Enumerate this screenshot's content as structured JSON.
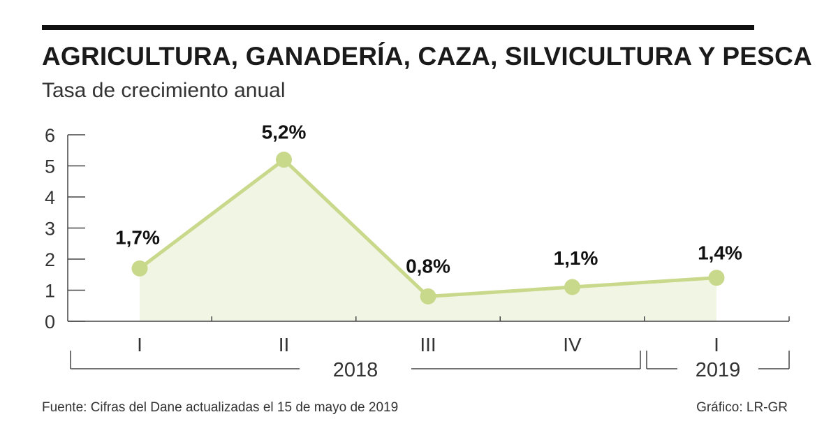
{
  "header": {
    "title": "AGRICULTURA, GANADERÍA, CAZA, SILVICULTURA Y PESCA",
    "subtitle": "Tasa de crecimiento anual"
  },
  "footer": {
    "source": "Fuente: Cifras del Dane actualizadas el 15 de mayo de 2019",
    "credit": "Gráfico: LR-GR"
  },
  "colors": {
    "line": "#c9d98c",
    "fill": "#f1f5e3",
    "axis": "#444444"
  },
  "chart_data": {
    "type": "line",
    "title": "AGRICULTURA, GANADERÍA, CAZA, SILVICULTURA Y PESCA",
    "subtitle": "Tasa de crecimiento anual",
    "xlabel": "",
    "ylabel": "",
    "ylim": [
      0,
      6
    ],
    "yticks": [
      "0",
      "1",
      "2",
      "3",
      "4",
      "5",
      "6"
    ],
    "categories": [
      "I",
      "II",
      "III",
      "IV",
      "I"
    ],
    "values": [
      1.7,
      5.2,
      0.8,
      1.1,
      1.4
    ],
    "data_labels": [
      "1,7%",
      "5,2%",
      "0,8%",
      "1,1%",
      "1,4%"
    ],
    "groups": [
      {
        "label": "2018",
        "start": 0,
        "end": 3
      },
      {
        "label": "2019",
        "start": 4,
        "end": 4
      }
    ],
    "grid": false,
    "legend": "none"
  }
}
